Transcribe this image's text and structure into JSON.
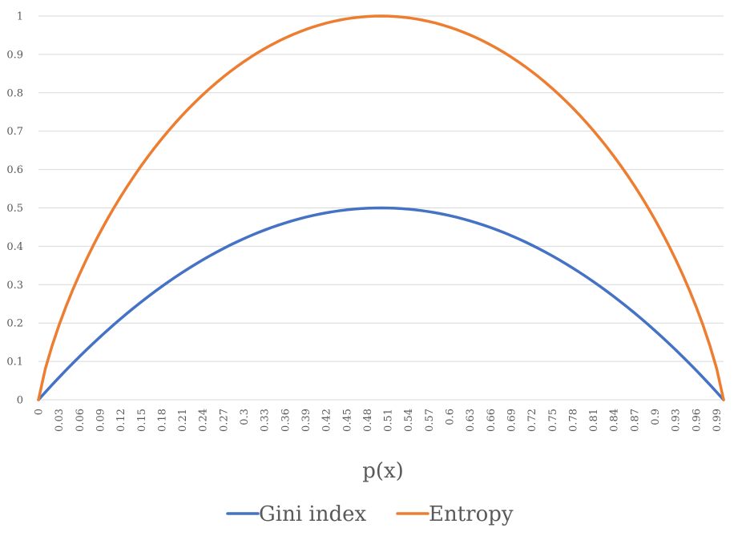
{
  "chart_data": {
    "type": "line",
    "xlabel": "p(x)",
    "ylabel": "",
    "title": "",
    "ylim": [
      0,
      1
    ],
    "yticks": [
      "0",
      "0.1",
      "0.2",
      "0.3",
      "0.4",
      "0.5",
      "0.6",
      "0.7",
      "0.8",
      "0.9",
      "1"
    ],
    "categories": [
      "0",
      "0.01",
      "0.02",
      "0.03",
      "0.04",
      "0.05",
      "0.06",
      "0.07",
      "0.08",
      "0.09",
      "0.1",
      "0.11",
      "0.12",
      "0.13",
      "0.14",
      "0.15",
      "0.16",
      "0.17",
      "0.18",
      "0.19",
      "0.2",
      "0.21",
      "0.22",
      "0.23",
      "0.24",
      "0.25",
      "0.26",
      "0.27",
      "0.28",
      "0.29",
      "0.3",
      "0.31",
      "0.32",
      "0.33",
      "0.34",
      "0.35",
      "0.36",
      "0.37",
      "0.38",
      "0.39",
      "0.4",
      "0.41",
      "0.42",
      "0.43",
      "0.44",
      "0.45",
      "0.46",
      "0.47",
      "0.48",
      "0.49",
      "0.5",
      "0.51",
      "0.52",
      "0.53",
      "0.54",
      "0.55",
      "0.56",
      "0.57",
      "0.58",
      "0.59",
      "0.6",
      "0.61",
      "0.62",
      "0.63",
      "0.64",
      "0.65",
      "0.66",
      "0.67",
      "0.68",
      "0.69",
      "0.7",
      "0.71",
      "0.72",
      "0.73",
      "0.74",
      "0.75",
      "0.76",
      "0.77",
      "0.78",
      "0.79",
      "0.8",
      "0.81",
      "0.82",
      "0.83",
      "0.84",
      "0.85",
      "0.86",
      "0.87",
      "0.88",
      "0.89",
      "0.9",
      "0.91",
      "0.92",
      "0.93",
      "0.94",
      "0.95",
      "0.96",
      "0.97",
      "0.98",
      "0.99",
      "1"
    ],
    "xtick_labels": [
      "0",
      "0.03",
      "0.06",
      "0.09",
      "0.12",
      "0.15",
      "0.18",
      "0.21",
      "0.24",
      "0.27",
      "0.3",
      "0.33",
      "0.36",
      "0.39",
      "0.42",
      "0.45",
      "0.48",
      "0.51",
      "0.54",
      "0.57",
      "0.6",
      "0.63",
      "0.66",
      "0.69",
      "0.72",
      "0.75",
      "0.78",
      "0.81",
      "0.84",
      "0.87",
      "0.9",
      "0.93",
      "0.96",
      "0.99"
    ],
    "series": [
      {
        "name": "Gini index",
        "color": "#4472C4",
        "values": [
          0,
          0.0198,
          0.0392,
          0.0582,
          0.0768,
          0.095,
          0.1128,
          0.1302,
          0.1472,
          0.1638,
          0.18,
          0.1958,
          0.2112,
          0.2262,
          0.2408,
          0.255,
          0.2688,
          0.2822,
          0.2952,
          0.3078,
          0.32,
          0.3318,
          0.3432,
          0.3542,
          0.3648,
          0.375,
          0.3848,
          0.3942,
          0.4032,
          0.4118,
          0.42,
          0.4278,
          0.4352,
          0.4422,
          0.4488,
          0.455,
          0.4608,
          0.4662,
          0.4712,
          0.4758,
          0.48,
          0.4838,
          0.4872,
          0.4902,
          0.4928,
          0.495,
          0.4968,
          0.4982,
          0.4992,
          0.4998,
          0.5,
          0.4998,
          0.4992,
          0.4982,
          0.4968,
          0.495,
          0.4928,
          0.4902,
          0.4872,
          0.4838,
          0.48,
          0.4758,
          0.4712,
          0.4662,
          0.4608,
          0.455,
          0.4488,
          0.4422,
          0.4352,
          0.4278,
          0.42,
          0.4118,
          0.4032,
          0.3942,
          0.3848,
          0.375,
          0.3648,
          0.3542,
          0.3432,
          0.3318,
          0.32,
          0.3078,
          0.2952,
          0.2822,
          0.2688,
          0.255,
          0.2408,
          0.2262,
          0.2112,
          0.1958,
          0.18,
          0.1638,
          0.1472,
          0.1302,
          0.1128,
          0.095,
          0.0768,
          0.0582,
          0.0392,
          0.0198,
          0
        ]
      },
      {
        "name": "Entropy",
        "color": "#ED7D31",
        "values": [
          0,
          0.0808,
          0.1414,
          0.1944,
          0.2423,
          0.2864,
          0.3274,
          0.3659,
          0.4022,
          0.4365,
          0.469,
          0.4999,
          0.5294,
          0.5574,
          0.5842,
          0.6098,
          0.6343,
          0.6577,
          0.6801,
          0.7015,
          0.7219,
          0.7415,
          0.7602,
          0.778,
          0.795,
          0.8113,
          0.8267,
          0.8415,
          0.8555,
          0.8687,
          0.8813,
          0.8932,
          0.9044,
          0.9149,
          0.9248,
          0.9341,
          0.9427,
          0.9507,
          0.958,
          0.9648,
          0.971,
          0.9765,
          0.9815,
          0.9858,
          0.9896,
          0.9928,
          0.9954,
          0.9974,
          0.9988,
          0.9997,
          1,
          0.9997,
          0.9988,
          0.9974,
          0.9954,
          0.9928,
          0.9896,
          0.9858,
          0.9815,
          0.9765,
          0.971,
          0.9648,
          0.958,
          0.9507,
          0.9427,
          0.9341,
          0.9248,
          0.9149,
          0.9044,
          0.8932,
          0.8813,
          0.8687,
          0.8555,
          0.8415,
          0.8267,
          0.8113,
          0.795,
          0.778,
          0.7602,
          0.7415,
          0.7219,
          0.7015,
          0.6801,
          0.6577,
          0.6343,
          0.6098,
          0.5842,
          0.5574,
          0.5294,
          0.4999,
          0.469,
          0.4365,
          0.4022,
          0.3659,
          0.3274,
          0.2864,
          0.2423,
          0.1944,
          0.1414,
          0.0808,
          0
        ]
      }
    ],
    "grid": true,
    "gridline_color": "#D9D9D9",
    "legend_position": "bottom"
  }
}
